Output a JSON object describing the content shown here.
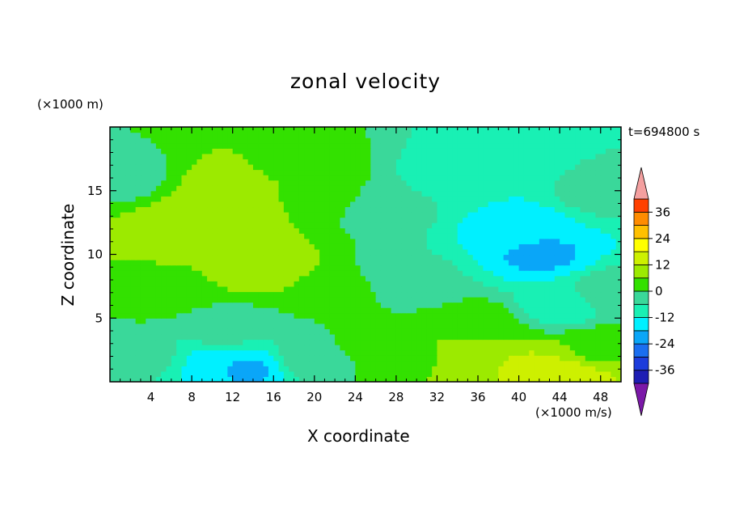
{
  "chart_data": {
    "type": "heatmap",
    "title": "zonal velocity",
    "xlabel": "X coordinate",
    "ylabel": "Z coordinate",
    "x_unit": "(×1000 m/s)",
    "y_unit": "(×1000 m)",
    "time_label": "t=694800 s",
    "xlim": [
      0,
      50
    ],
    "ylim": [
      0,
      20
    ],
    "x_ticks": [
      4,
      8,
      12,
      16,
      20,
      24,
      28,
      32,
      36,
      40,
      44,
      48
    ],
    "y_ticks": [
      5,
      10,
      15
    ],
    "colorbar": {
      "labels": [
        "36",
        "24",
        "12",
        "0",
        "-12",
        "-24",
        "-36"
      ],
      "label_values": [
        36,
        24,
        12,
        0,
        -12,
        -24,
        -36
      ],
      "levels": [
        -42,
        -36,
        -30,
        -24,
        -18,
        -12,
        -6,
        0,
        6,
        12,
        18,
        24,
        30,
        36,
        42
      ],
      "colors": [
        "#3c18a0",
        "#1e1eb4",
        "#1c3cdc",
        "#1a6ef0",
        "#0aa6f8",
        "#00f0ff",
        "#19f0b4",
        "#3ad89a",
        "#33e100",
        "#9cea00",
        "#cdf000",
        "#ffff00",
        "#ffc000",
        "#ff8c00",
        "#ff4000",
        "#e80000"
      ],
      "under_color": "#7b18a8",
      "over_color": "#f4a0a0"
    },
    "field_features": [
      {
        "x": 10,
        "z": 13,
        "value": 12
      },
      {
        "x": 6,
        "z": 12,
        "value": 9
      },
      {
        "x": 12,
        "z": 15,
        "value": 10
      },
      {
        "x": 15,
        "z": 9,
        "value": 10
      },
      {
        "x": 5,
        "z": 7,
        "value": 4
      },
      {
        "x": 18,
        "z": 17,
        "value": 5
      },
      {
        "x": 1,
        "z": 16,
        "value": -3
      },
      {
        "x": 22,
        "z": 7,
        "value": 2
      },
      {
        "x": 21,
        "z": 15,
        "value": 3
      },
      {
        "x": 27,
        "z": 14,
        "value": -3
      },
      {
        "x": 30,
        "z": 8,
        "value": -5
      },
      {
        "x": 33,
        "z": 16,
        "value": -9
      },
      {
        "x": 38,
        "z": 17,
        "value": -12
      },
      {
        "x": 40,
        "z": 12,
        "value": -16
      },
      {
        "x": 42,
        "z": 10,
        "value": -19
      },
      {
        "x": 44,
        "z": 6,
        "value": -9
      },
      {
        "x": 48,
        "z": 15,
        "value": -4
      },
      {
        "x": 49,
        "z": 7,
        "value": -3
      },
      {
        "x": 11,
        "z": 4,
        "value": -4
      },
      {
        "x": 10,
        "z": 1.5,
        "value": -13
      },
      {
        "x": 13,
        "z": 1,
        "value": -19
      },
      {
        "x": 3,
        "z": 2,
        "value": -3
      },
      {
        "x": 20,
        "z": 2,
        "value": -2
      },
      {
        "x": 25,
        "z": 3,
        "value": 1
      },
      {
        "x": 30,
        "z": 2,
        "value": 5
      },
      {
        "x": 35,
        "z": 2,
        "value": 10
      },
      {
        "x": 41,
        "z": 1,
        "value": 13
      },
      {
        "x": 45,
        "z": 0.5,
        "value": 15
      },
      {
        "x": 48,
        "z": 2.5,
        "value": 5
      },
      {
        "x": 36,
        "z": 4.5,
        "value": 4
      }
    ]
  }
}
